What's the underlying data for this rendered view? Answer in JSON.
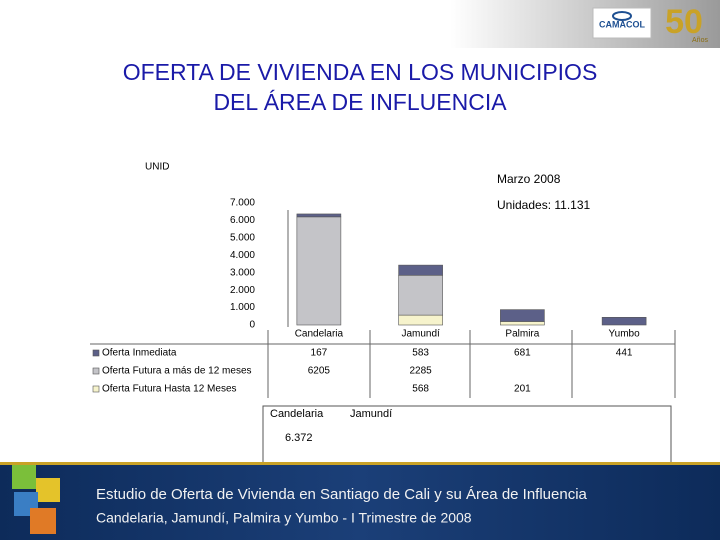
{
  "header": {
    "title_lines": [
      "OFERTA  DE VIVIENDA EN LOS MUNICIPIOS",
      "DEL ÁREA DE INFLUENCIA"
    ],
    "logo": {
      "name": "CAMACOL",
      "years": "50",
      "years_word": "Años"
    }
  },
  "chart_data": {
    "type": "stacked_bar",
    "y_label": "UNID",
    "annotations": [
      "Marzo 2008",
      "Unidades: 11.131"
    ],
    "categories": [
      "Candelaria",
      "Jamundí",
      "Palmira",
      "Yumbo"
    ],
    "series": [
      {
        "name": "Oferta Inmediata",
        "color": "#5c6088",
        "values": [
          167,
          583,
          681,
          441
        ]
      },
      {
        "name": "Oferta Futura a más de 12 meses",
        "color": "#c4c4c8",
        "values": [
          6205,
          2285,
          null,
          null
        ]
      },
      {
        "name": "Oferta Futura Hasta 12 Meses",
        "color": "#f6f3cc",
        "values": [
          null,
          568,
          201,
          null
        ]
      }
    ],
    "ylim": [
      0,
      7000
    ],
    "yticks": [
      {
        "value": 0,
        "label": "0"
      },
      {
        "value": 1000,
        "label": "1.000"
      },
      {
        "value": 2000,
        "label": "2.000"
      },
      {
        "value": 3000,
        "label": "3.000"
      },
      {
        "value": 4000,
        "label": "4.000"
      },
      {
        "value": 5000,
        "label": "5.000"
      },
      {
        "value": 6000,
        "label": "6.000"
      },
      {
        "value": 7000,
        "label": "7.000"
      }
    ]
  },
  "note_box": {
    "labels": [
      "Candelaria",
      "Jamundí"
    ],
    "value_text": "6.372"
  },
  "footer": {
    "line1": "Estudio de Oferta de Vivienda en Santiago de Cali y su Área de Influencia",
    "line2": "Candelaria, Jamundí, Palmira y Yumbo - I Trimestre de 2008"
  }
}
